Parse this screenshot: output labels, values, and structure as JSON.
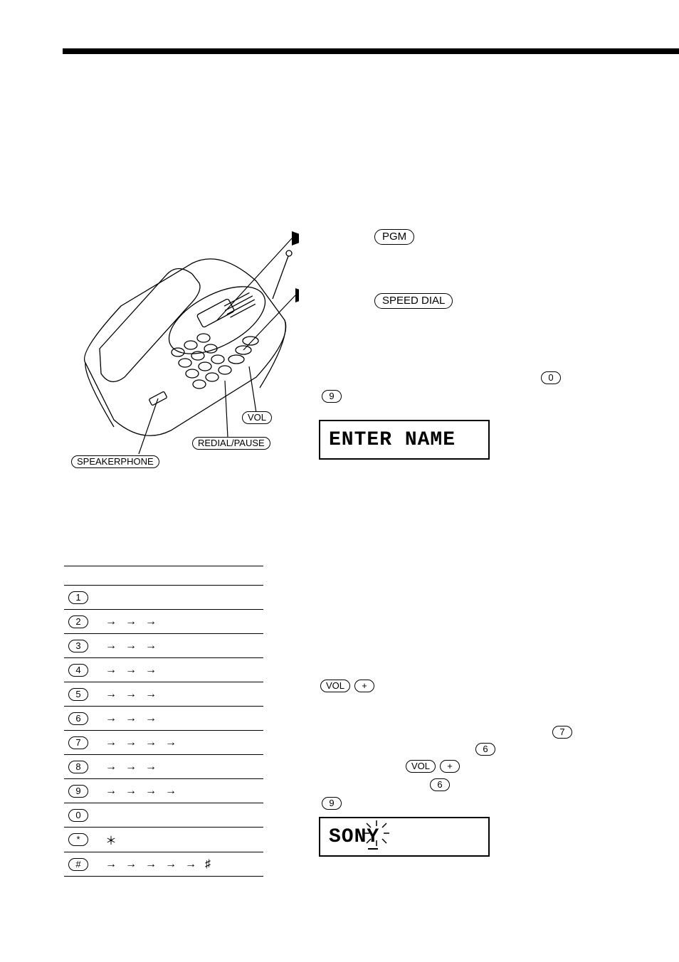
{
  "rules": {
    "top_color": "#000000"
  },
  "phone_labels": {
    "vol": "VOL",
    "redial_pause": "REDIAL/PAUSE",
    "speakerphone": "SPEAKERPHONE"
  },
  "right": {
    "pgm": "PGM",
    "speed_dial": "SPEED DIAL",
    "key9": "9",
    "key0": "0",
    "lcd1": "ENTER NAME",
    "vol": "VOL",
    "plus": "+",
    "key7": "7",
    "key6a": "6",
    "key6b": "6",
    "key9b": "9",
    "lcd2_prefix": "SON",
    "lcd2_cursor": "Y"
  },
  "char_table": {
    "rows": [
      {
        "key": "1",
        "seq": []
      },
      {
        "key": "2",
        "seq": [
          "→",
          "→",
          "→"
        ]
      },
      {
        "key": "3",
        "seq": [
          "→",
          "→",
          "→"
        ]
      },
      {
        "key": "4",
        "seq": [
          "→",
          "→",
          "→"
        ]
      },
      {
        "key": "5",
        "seq": [
          "→",
          "→",
          "→"
        ]
      },
      {
        "key": "6",
        "seq": [
          "→",
          "→",
          "→"
        ]
      },
      {
        "key": "7",
        "seq": [
          "→",
          "→",
          "→",
          "→"
        ]
      },
      {
        "key": "8",
        "seq": [
          "→",
          "→",
          "→"
        ]
      },
      {
        "key": "9",
        "seq": [
          "→",
          "→",
          "→",
          "→"
        ]
      },
      {
        "key": "0",
        "seq": []
      },
      {
        "key": "*",
        "seq": [
          "＊"
        ]
      },
      {
        "key": "#",
        "seq": [
          "→",
          "→",
          "→",
          "→",
          "→",
          "♯"
        ]
      }
    ]
  },
  "colors": {
    "page_bg": "#ffffff",
    "line": "#000000",
    "text": "#000000"
  }
}
